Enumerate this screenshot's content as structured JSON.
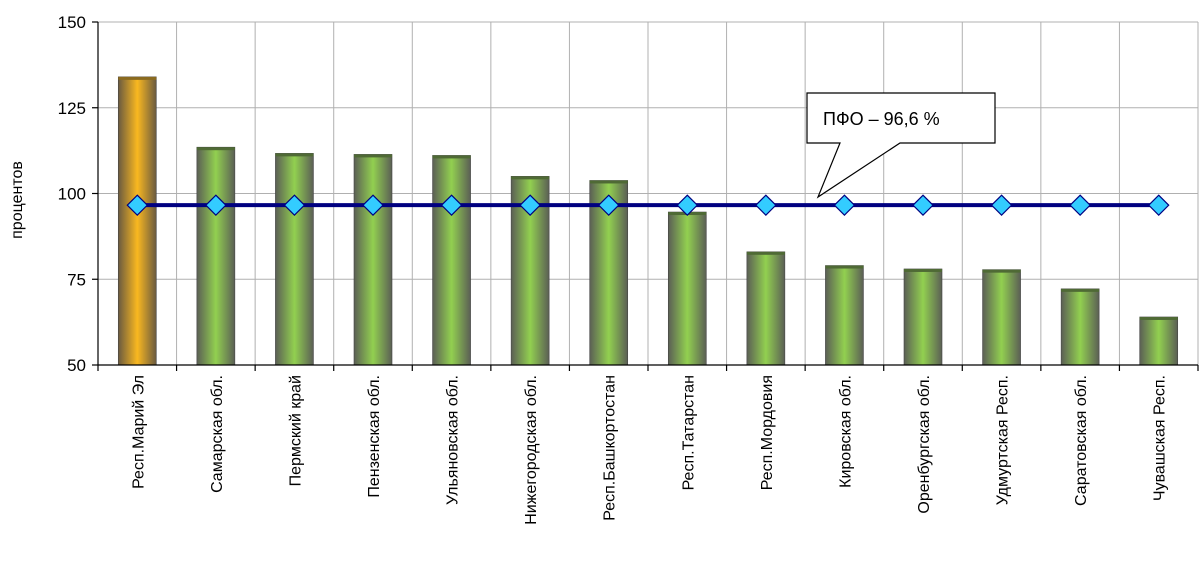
{
  "chart_data": {
    "type": "bar",
    "title": "",
    "xlabel": "",
    "ylabel": "процентов",
    "ylim": [
      50,
      150
    ],
    "yticks": [
      50,
      75,
      100,
      125,
      150
    ],
    "grid": true,
    "categories": [
      "Респ.Марий Эл",
      "Самарская обл.",
      "Пермский край",
      "Пензенская обл.",
      "Ульяновская обл.",
      "Нижегородская обл.",
      "Респ.Башкортостан",
      "Респ.Татарстан",
      "Респ.Мордовия",
      "Кировская обл.",
      "Оренбургская обл.",
      "Удмуртская Респ.",
      "Саратовская обл.",
      "Чувашская Респ."
    ],
    "values": [
      134,
      113.5,
      111.7,
      111.4,
      111.1,
      105,
      103.8,
      94.6,
      83,
      79,
      78,
      77.8,
      72.2,
      64
    ],
    "highlight_index": 0,
    "reference_line": {
      "value": 96.6,
      "label": "ПФО – 96,6 %"
    },
    "colors": {
      "bar": "#92d050",
      "bar_highlight": "#f9b820",
      "line": "#000080",
      "marker": "#33ccff"
    }
  }
}
